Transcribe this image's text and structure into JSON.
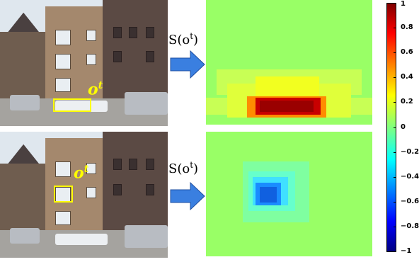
{
  "rows": [
    {
      "label": "o",
      "label_sup": "t",
      "formula": "S(o",
      "formula_sup": "t",
      "formula_close": ")"
    },
    {
      "label": "o",
      "label_sup": "t",
      "formula": "S(o",
      "formula_sup": "t",
      "formula_close": ")"
    }
  ],
  "colorbar": {
    "ticks": [
      "1",
      "0.8",
      "0.6",
      "0.4",
      "0.2",
      "0",
      "−0.2",
      "−0.4",
      "−0.6",
      "−0.8",
      "−1"
    ],
    "colors": [
      "#800000",
      "#ff0000",
      "#ffff00",
      "#80ff80",
      "#00ffff",
      "#0000ff",
      "#000080"
    ]
  },
  "colors": {
    "box": "#ffff00",
    "arrow": "#3a7fe0",
    "map_background": "#99ff66"
  }
}
